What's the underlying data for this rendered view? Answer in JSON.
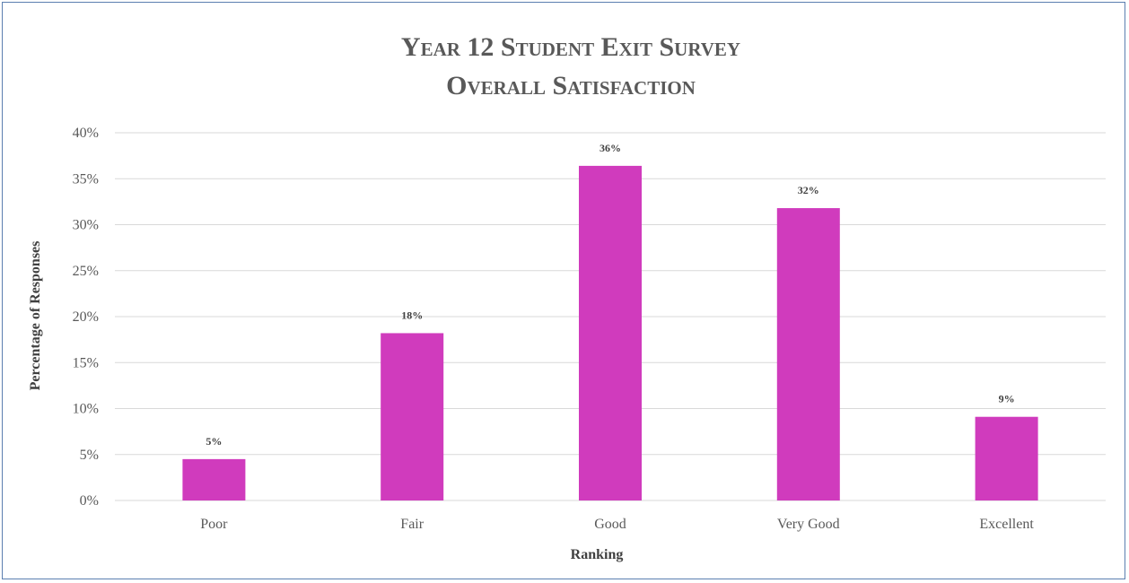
{
  "chart_data": {
    "type": "bar",
    "title": "Year 12 Student Exit Survey",
    "subtitle": "Overall Satisfaction",
    "xlabel": "Ranking",
    "ylabel": "Percentage of Responses",
    "categories": [
      "Poor",
      "Fair",
      "Good",
      "Very Good",
      "Excellent"
    ],
    "values": [
      4.5,
      18.2,
      36.4,
      31.8,
      9.1
    ],
    "data_labels": [
      "5%",
      "18%",
      "36%",
      "32%",
      "9%"
    ],
    "ylim": [
      0,
      40
    ],
    "y_ticks": [
      0,
      5,
      10,
      15,
      20,
      25,
      30,
      35,
      40
    ],
    "y_tick_labels": [
      "0%",
      "5%",
      "10%",
      "15%",
      "20%",
      "25%",
      "30%",
      "35%",
      "40%"
    ],
    "grid": true,
    "legend": "none",
    "bar_color": "#d03bbd",
    "grid_color": "#d9d9d9"
  }
}
